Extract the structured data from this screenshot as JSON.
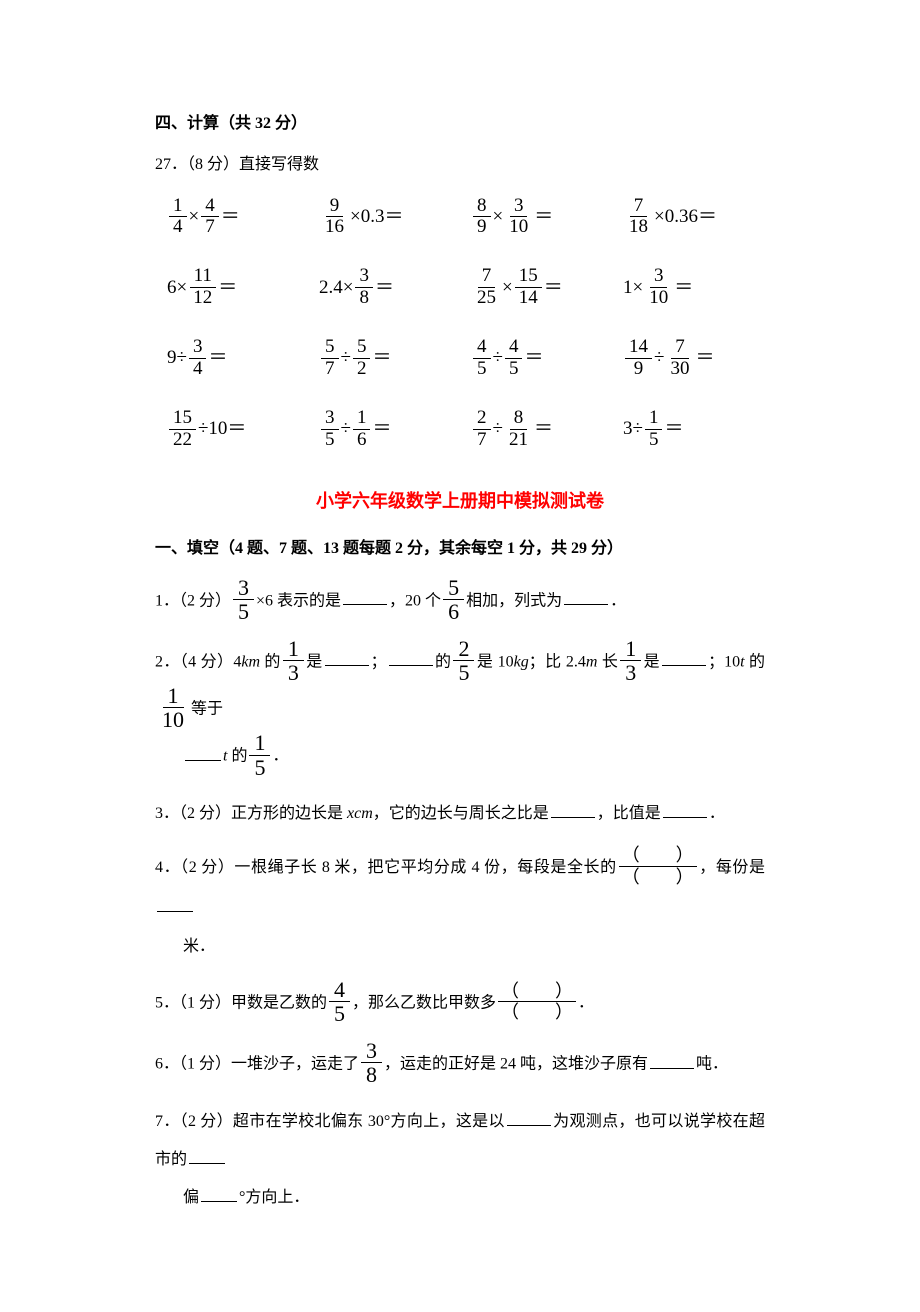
{
  "section4": {
    "header": "四、计算（共 32 分）",
    "q27_intro": "27．（8 分）直接写得数",
    "grid": {
      "rows": [
        [
          {
            "type": "fxf",
            "a": "1",
            "b": "4",
            "c": "4",
            "d": "7"
          },
          {
            "type": "fxn",
            "a": "9",
            "b": "16",
            "n": "0.3"
          },
          {
            "type": "fxf",
            "a": "8",
            "b": "9",
            "c": "3",
            "d": "10"
          },
          {
            "type": "fxn",
            "a": "7",
            "b": "18",
            "n": "0.36"
          }
        ],
        [
          {
            "type": "nxf",
            "n": "6",
            "a": "11",
            "b": "12"
          },
          {
            "type": "nxf",
            "n": "2.4",
            "a": "3",
            "b": "8"
          },
          {
            "type": "fxf",
            "a": "7",
            "b": "25",
            "c": "15",
            "d": "14"
          },
          {
            "type": "nxf",
            "n": "1",
            "a": "3",
            "b": "10"
          }
        ],
        [
          {
            "type": "ndf",
            "n": "9",
            "a": "3",
            "b": "4"
          },
          {
            "type": "fdf",
            "a": "5",
            "b": "7",
            "c": "5",
            "d": "2"
          },
          {
            "type": "fdf",
            "a": "4",
            "b": "5",
            "c": "4",
            "d": "5"
          },
          {
            "type": "fdf",
            "a": "14",
            "b": "9",
            "c": "7",
            "d": "30"
          }
        ],
        [
          {
            "type": "fdn",
            "a": "15",
            "b": "22",
            "n": "10"
          },
          {
            "type": "fdf",
            "a": "3",
            "b": "5",
            "c": "1",
            "d": "6"
          },
          {
            "type": "fdf",
            "a": "2",
            "b": "7",
            "c": "8",
            "d": "21"
          },
          {
            "type": "ndf",
            "n": "3",
            "a": "1",
            "b": "5"
          }
        ]
      ]
    }
  },
  "title": "小学六年级数学上册期中模拟测试卷",
  "section1": {
    "header": "一、填空（4 题、7 题、13 题每题 2 分，其余每空 1 分，共 29 分）",
    "q1": {
      "prefix": "1．（2 分）",
      "frac1": {
        "n": "3",
        "d": "5"
      },
      "t1": "×6 表示的是",
      "t2": "，20 个",
      "frac2": {
        "n": "5",
        "d": "6"
      },
      "t3": "相加，列式为",
      "t4": "．"
    },
    "q2": {
      "prefix": "2．（4 分）4",
      "km": "km",
      "t1": " 的",
      "f1": {
        "n": "1",
        "d": "3"
      },
      "t2": "是",
      "t3": "；",
      "t4": "的",
      "f2": {
        "n": "2",
        "d": "5"
      },
      "t5": "是 10",
      "kg": "kg",
      "t6": "；比 2.4",
      "m": "m",
      "t7": " 长",
      "f3": {
        "n": "1",
        "d": "3"
      },
      "t8": "是",
      "t9": "；10",
      "t_unit": "t",
      "t10": " 的",
      "f4": {
        "n": "1",
        "d": "10"
      },
      "t11": "等于",
      "line2_t": "t",
      "line2_mid": " 的",
      "f5": {
        "n": "1",
        "d": "5"
      },
      "t12": "．"
    },
    "q3": {
      "prefix": "3．（2 分）正方形的边长是 ",
      "xcm": "xcm",
      "t1": "，它的边长与周长之比是",
      "t2": "，比值是",
      "t3": "．"
    },
    "q4": {
      "prefix": "4．（2 分）一根绳子长 8 米，把它平均分成 4 份，每段是全长的",
      "t1": "，每份是",
      "line2": "米．"
    },
    "q5": {
      "prefix": "5．（1 分）甲数是乙数的",
      "f1": {
        "n": "4",
        "d": "5"
      },
      "t1": "，那么乙数比甲数多",
      "t2": "．"
    },
    "q6": {
      "prefix": "6．（1 分）一堆沙子，运走了",
      "f1": {
        "n": "3",
        "d": "8"
      },
      "t1": "，运走的正好是 24 吨，这堆沙子原有",
      "t2": "吨．"
    },
    "q7": {
      "prefix": "7．（2 分）超市在学校北偏东 30°方向上，这是以",
      "t1": "为观测点，也可以说学校在超市的",
      "line2a": "偏",
      "line2b": "°方向上．"
    }
  }
}
